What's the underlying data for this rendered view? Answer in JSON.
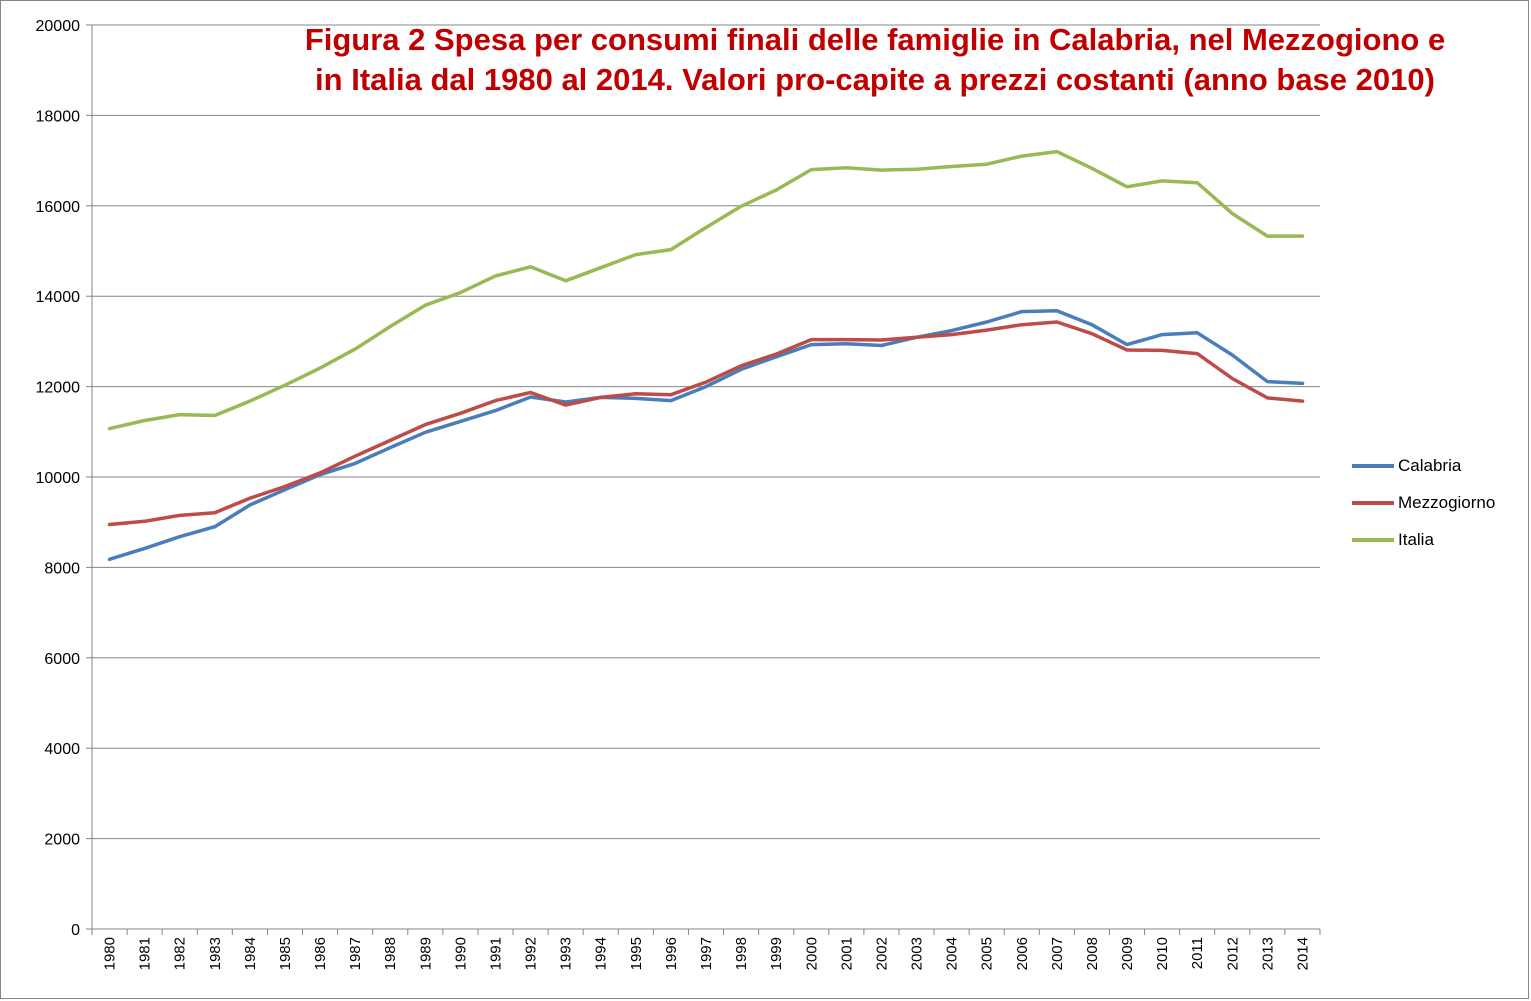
{
  "chart_data": {
    "type": "line",
    "title_lines": [
      "Figura 2  Spesa per consumi finali delle famiglie in Calabria, nel Mezzogiono e",
      "in Italia dal 1980 al 2014. Valori pro-capite a prezzi costanti (anno base 2010)"
    ],
    "xlabel": "",
    "ylabel": "",
    "ylim": [
      0,
      20000
    ],
    "yticks": [
      "0",
      "2000",
      "4000",
      "6000",
      "8000",
      "10000",
      "12000",
      "14000",
      "16000",
      "18000",
      "20000"
    ],
    "grid": true,
    "legend_position": "right",
    "categories": [
      "1980",
      "1981",
      "1982",
      "1983",
      "1984",
      "1985",
      "1986",
      "1987",
      "1988",
      "1989",
      "1990",
      "1991",
      "1992",
      "1993",
      "1994",
      "1995",
      "1996",
      "1997",
      "1998",
      "1999",
      "2000",
      "2001",
      "2002",
      "2003",
      "2004",
      "2005",
      "2006",
      "2007",
      "2008",
      "2009",
      "2010",
      "2011",
      "2012",
      "2013",
      "2014"
    ],
    "series": [
      {
        "name": "Calabria",
        "color": "#4a7ebb",
        "values": [
          8180,
          8420,
          8680,
          8900,
          9380,
          9720,
          10050,
          10300,
          10650,
          10990,
          11230,
          11470,
          11770,
          11660,
          11760,
          11740,
          11690,
          12000,
          12380,
          12660,
          12930,
          12950,
          12910,
          13090,
          13240,
          13430,
          13660,
          13680,
          13370,
          12930,
          13150,
          13190,
          12700,
          12110,
          12070
        ]
      },
      {
        "name": "Mezzogiorno",
        "color": "#be4b48",
        "values": [
          8950,
          9020,
          9150,
          9210,
          9530,
          9790,
          10090,
          10460,
          10810,
          11160,
          11410,
          11690,
          11870,
          11590,
          11760,
          11840,
          11820,
          12100,
          12460,
          12720,
          13040,
          13040,
          13030,
          13090,
          13150,
          13250,
          13370,
          13430,
          13170,
          12810,
          12800,
          12730,
          12180,
          11750,
          11680
        ]
      },
      {
        "name": "Italia",
        "color": "#98b954",
        "values": [
          11070,
          11250,
          11380,
          11360,
          11680,
          12030,
          12410,
          12830,
          13330,
          13800,
          14080,
          14450,
          14650,
          14340,
          14630,
          14920,
          15030,
          15520,
          15990,
          16350,
          16800,
          16840,
          16790,
          16810,
          16870,
          16920,
          17100,
          17200,
          16830,
          16420,
          16550,
          16510,
          15830,
          15330,
          15330
        ]
      }
    ]
  }
}
